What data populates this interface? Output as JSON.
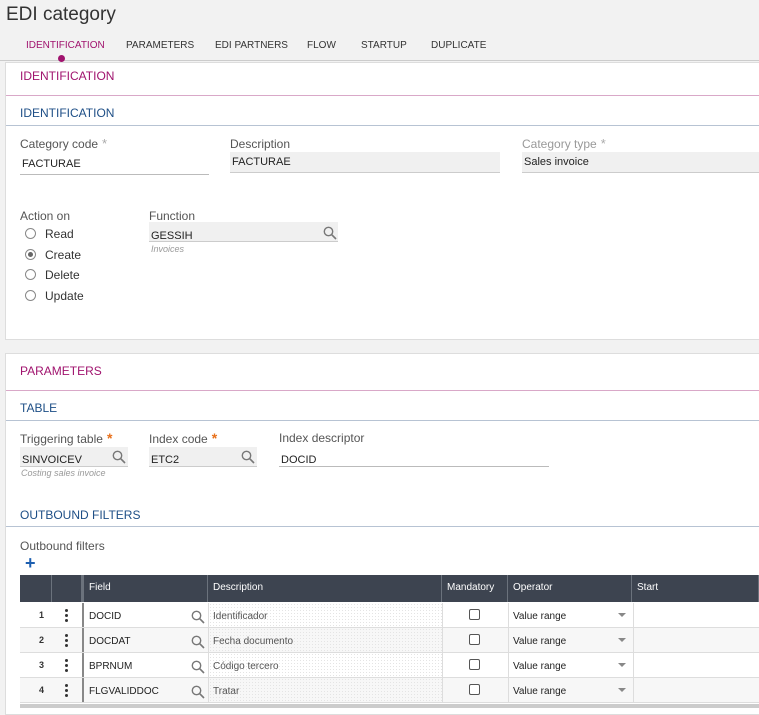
{
  "header": {
    "title": "EDI category"
  },
  "tabs": [
    "IDENTIFICATION",
    "PARAMETERS",
    "EDI PARTNERS",
    "FLOW",
    "STARTUP",
    "DUPLICATE"
  ],
  "active_tab": 0,
  "identification": {
    "section_title": "IDENTIFICATION",
    "block_title": "IDENTIFICATION",
    "category_code": {
      "label": "Category code",
      "marker": "*",
      "value": "FACTURAE"
    },
    "description": {
      "label": "Description",
      "value": "FACTURAE"
    },
    "category_type": {
      "label": "Category type",
      "marker": "*",
      "value": "Sales invoice"
    },
    "action_on": {
      "label": "Action on",
      "options": [
        "Read",
        "Create",
        "Delete",
        "Update"
      ],
      "selected": 1
    },
    "function": {
      "label": "Function",
      "value": "GESSIH",
      "hint": "Invoices"
    }
  },
  "parameters": {
    "section_title": "PARAMETERS",
    "block_title": "TABLE",
    "triggering_table": {
      "label": "Triggering table",
      "marker": "*",
      "value": "SINVOICEV",
      "hint": "Costing sales invoice"
    },
    "index_code": {
      "label": "Index code",
      "marker": "*",
      "value": "ETC2"
    },
    "index_descriptor": {
      "label": "Index descriptor",
      "value": "DOCID"
    },
    "outbound": {
      "block_title": "OUTBOUND FILTERS",
      "label": "Outbound filters",
      "add": "+",
      "columns": [
        "Field",
        "Description",
        "Mandatory",
        "Operator",
        "Start"
      ],
      "rows": [
        {
          "number": "1",
          "field": "DOCID",
          "description": "Identificador",
          "mandatory": false,
          "operator": "Value range"
        },
        {
          "number": "2",
          "field": "DOCDAT",
          "description": "Fecha documento",
          "mandatory": false,
          "operator": "Value range"
        },
        {
          "number": "3",
          "field": "BPRNUM",
          "description": "Código tercero",
          "mandatory": false,
          "operator": "Value range"
        },
        {
          "number": "4",
          "field": "FLGVALIDDOC",
          "description": "Tratar",
          "mandatory": false,
          "operator": "Value range"
        }
      ]
    }
  }
}
